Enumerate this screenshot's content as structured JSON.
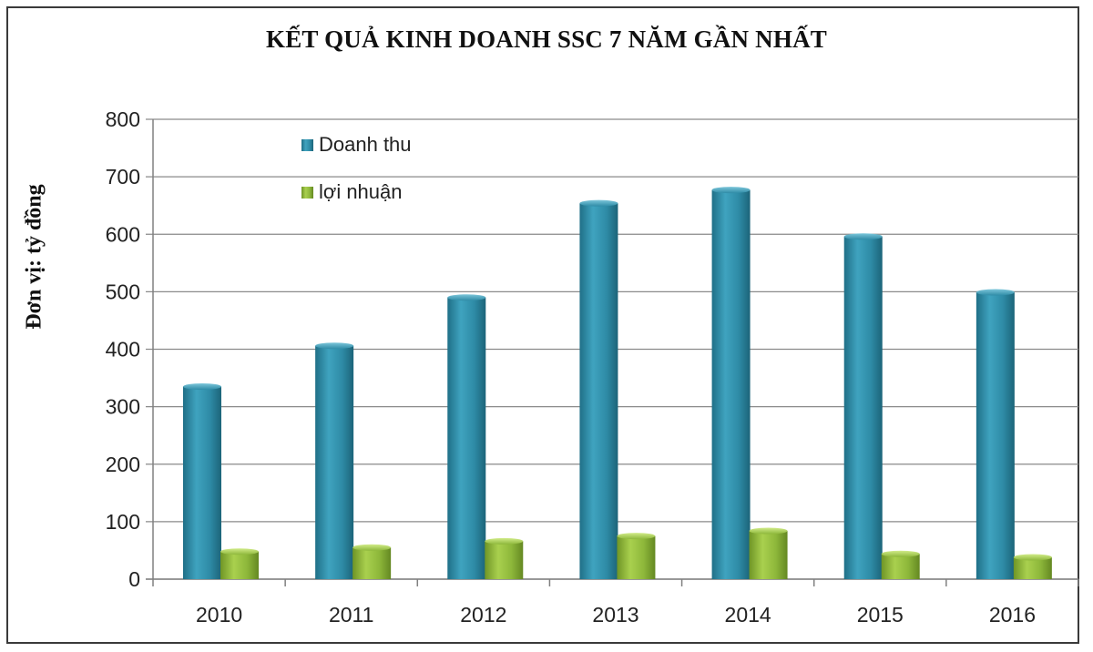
{
  "chart_data": {
    "type": "bar",
    "title": "KẾT QUẢ KINH DOANH SSC 7 NĂM GẦN NHẤT",
    "xlabel": "",
    "ylabel": "Đơn vị: tỷ đồng",
    "categories": [
      "2010",
      "2011",
      "2012",
      "2013",
      "2014",
      "2015",
      "2016"
    ],
    "series": [
      {
        "name": "Doanh thu",
        "values": [
          335,
          406,
          490,
          654,
          677,
          596,
          499
        ],
        "color": "#2E8BA6"
      },
      {
        "name": "lợi nhuận",
        "values": [
          48,
          55,
          66,
          75,
          84,
          44,
          38
        ],
        "color": "#8DB73A"
      }
    ],
    "ylim": [
      0,
      800
    ],
    "yticks": [
      0,
      100,
      200,
      300,
      400,
      500,
      600,
      700,
      800
    ],
    "grid": true,
    "legend_position": "top-left inside plot"
  }
}
